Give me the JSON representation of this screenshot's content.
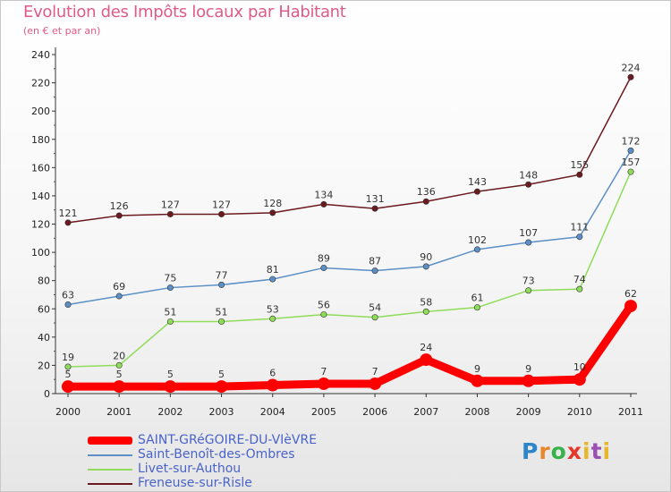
{
  "header": {
    "title": "Evolution des Impôts locaux par Habitant",
    "subtitle": "(en € et par an)"
  },
  "logo": {
    "text": "Proxiti"
  },
  "chart_data": {
    "type": "line",
    "title": "Evolution des Impôts locaux par Habitant",
    "subtitle": "(en € et par an)",
    "xlabel": "",
    "ylabel": "",
    "x": [
      "2000",
      "2001",
      "2002",
      "2003",
      "2004",
      "2005",
      "2006",
      "2007",
      "2008",
      "2009",
      "2010",
      "2011"
    ],
    "ylim": [
      0,
      240
    ],
    "yticks": [
      0,
      20,
      40,
      60,
      80,
      100,
      120,
      140,
      160,
      180,
      200,
      220,
      240
    ],
    "grid": false,
    "legend_position": "bottom-left",
    "series": [
      {
        "name": "Freneuse-sur-Risle",
        "color": "#6b1a1f",
        "values": [
          121,
          126,
          127,
          127,
          128,
          134,
          131,
          136,
          143,
          148,
          155,
          224
        ]
      },
      {
        "name": "Saint-Benoît-des-Ombres",
        "color": "#5b8fc6",
        "values": [
          63,
          69,
          75,
          77,
          81,
          89,
          87,
          90,
          102,
          107,
          111,
          172
        ]
      },
      {
        "name": "Livet-sur-Authou",
        "color": "#8fdb5a",
        "values": [
          19,
          20,
          51,
          51,
          53,
          56,
          54,
          58,
          61,
          73,
          74,
          157
        ]
      },
      {
        "name": "SAINT-GRéGOIRE-DU-VIèVRE",
        "color": "#ff0000",
        "values": [
          5,
          5,
          5,
          5,
          6,
          7,
          7,
          24,
          9,
          9,
          10,
          62
        ]
      }
    ],
    "legend": [
      "SAINT-GRéGOIRE-DU-VIèVRE",
      "Saint-Benoît-des-Ombres",
      "Livet-sur-Authou",
      "Freneuse-sur-Risle"
    ]
  }
}
